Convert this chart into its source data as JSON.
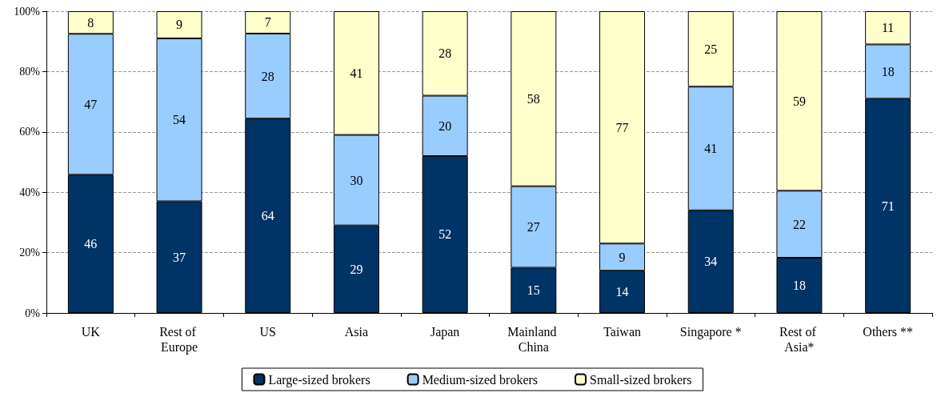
{
  "chart_data": {
    "type": "bar",
    "stacked": true,
    "categories": [
      "UK",
      "Rest of Europe",
      "US",
      "Asia",
      "Japan",
      "Mainland China",
      "Taiwan",
      "Singapore *",
      "Rest of Asia*",
      "Others **"
    ],
    "series": [
      {
        "name": "Large-sized brokers",
        "color": "#003366",
        "values": [
          45.8,
          37,
          64.4,
          29,
          52,
          15,
          14,
          34,
          18.3,
          71
        ],
        "value_labels": [
          "46",
          "37",
          "64",
          "29",
          "52",
          "15",
          "14",
          "34",
          "18",
          "71"
        ]
      },
      {
        "name": "Medium-sized brokers",
        "color": "#99ccff",
        "values": [
          46.7,
          54,
          28.2,
          30,
          20,
          27,
          9,
          41,
          22.2,
          18
        ],
        "value_labels": [
          "47",
          "54",
          "28",
          "30",
          "20",
          "27",
          "9",
          "41",
          "22",
          "18"
        ]
      },
      {
        "name": "Small-sized brokers",
        "color": "#ffffcc",
        "values": [
          7.5,
          9,
          7.4,
          41,
          28,
          58,
          77,
          25,
          59.5,
          11
        ],
        "value_labels": [
          "8",
          "9",
          "7",
          "41",
          "28",
          "58",
          "77",
          "25",
          "59",
          "11"
        ]
      }
    ],
    "ylim": [
      0,
      100
    ],
    "yticks": [
      {
        "value": 0,
        "label": "0%"
      },
      {
        "value": 20,
        "label": "20%"
      },
      {
        "value": 40,
        "label": "40%"
      },
      {
        "value": 60,
        "label": "60%"
      },
      {
        "value": 80,
        "label": "80%"
      },
      {
        "value": 100,
        "label": "100%"
      }
    ],
    "grid": "y",
    "legend": "bottom"
  }
}
